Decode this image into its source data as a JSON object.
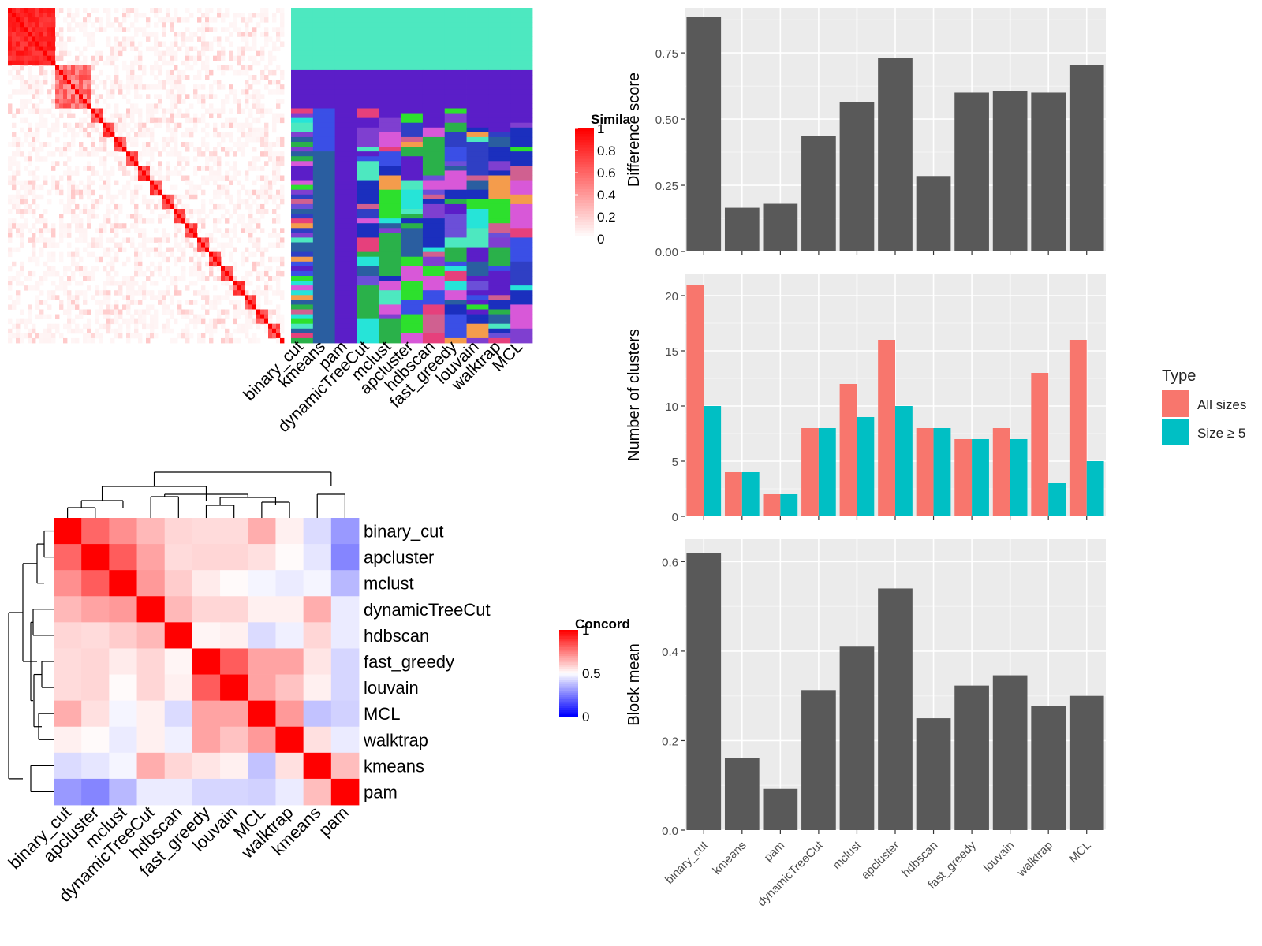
{
  "methods": [
    "binary_cut",
    "kmeans",
    "pam",
    "dynamicTreeCut",
    "mclust",
    "apcluster",
    "hdbscan",
    "fast_greedy",
    "louvain",
    "walktrap",
    "MCL"
  ],
  "top_left": {
    "legend_title": "Simila",
    "legend_ticks": [
      "1",
      "0.8",
      "0.6",
      "0.4",
      "0.2",
      "0"
    ],
    "column_labels": [
      "binary_cut",
      "kmeans",
      "pam",
      "dynamicTreeCut",
      "mclust",
      "apcluster",
      "hdbscan",
      "fast_greedy",
      "louvain",
      "walktrap",
      "MCL"
    ]
  },
  "bottom_left": {
    "legend_title": "Concord",
    "legend_ticks": [
      "1",
      "0.5",
      "0"
    ]
  },
  "colors": {
    "panel_bg": "#ebebeb",
    "bar_dark": "#595959",
    "all_sizes": "#f8766d",
    "size_ge5": "#00bfc4",
    "heat_high": "#ff0000",
    "heat_low": "#0000ff"
  },
  "chart_data": [
    {
      "type": "bar",
      "categories": [
        "binary_cut",
        "kmeans",
        "pam",
        "dynamicTreeCut",
        "mclust",
        "apcluster",
        "hdbscan",
        "fast_greedy",
        "louvain",
        "walktrap",
        "MCL"
      ],
      "values": [
        0.885,
        0.165,
        0.18,
        0.435,
        0.565,
        0.73,
        0.285,
        0.6,
        0.605,
        0.6,
        0.705
      ],
      "ylabel": "Difference score",
      "ylim": [
        0,
        0.92
      ],
      "yticks": [
        "0.00",
        "0.25",
        "0.50",
        "0.75"
      ],
      "ytick_values": [
        0,
        0.25,
        0.5,
        0.75
      ]
    },
    {
      "type": "bar",
      "categories": [
        "binary_cut",
        "kmeans",
        "pam",
        "dynamicTreeCut",
        "mclust",
        "apcluster",
        "hdbscan",
        "fast_greedy",
        "louvain",
        "walktrap",
        "MCL"
      ],
      "series": [
        {
          "name": "All sizes",
          "values": [
            21,
            4,
            2,
            8,
            12,
            16,
            8,
            7,
            8,
            13,
            16
          ]
        },
        {
          "name": "Size ≥ 5",
          "values": [
            10,
            4,
            2,
            8,
            9,
            10,
            8,
            7,
            7,
            3,
            5
          ]
        }
      ],
      "ylabel": "Number of clusters",
      "ylim": [
        0,
        22
      ],
      "yticks": [
        "0",
        "5",
        "10",
        "15",
        "20"
      ],
      "ytick_values": [
        0,
        5,
        10,
        15,
        20
      ],
      "legend_title": "Type",
      "legend_position": "right"
    },
    {
      "type": "bar",
      "categories": [
        "binary_cut",
        "kmeans",
        "pam",
        "dynamicTreeCut",
        "mclust",
        "apcluster",
        "hdbscan",
        "fast_greedy",
        "louvain",
        "walktrap",
        "MCL"
      ],
      "values": [
        0.62,
        0.162,
        0.092,
        0.313,
        0.41,
        0.54,
        0.25,
        0.323,
        0.346,
        0.277,
        0.3
      ],
      "ylabel": "Block mean",
      "ylim": [
        0,
        0.65
      ],
      "yticks": [
        "0.0",
        "0.2",
        "0.4",
        "0.6"
      ],
      "ytick_values": [
        0,
        0.2,
        0.4,
        0.6
      ]
    },
    {
      "type": "heatmap",
      "labels": [
        "binary_cut",
        "apcluster",
        "mclust",
        "dynamicTreeCut",
        "hdbscan",
        "fast_greedy",
        "louvain",
        "MCL",
        "walktrap",
        "kmeans",
        "pam"
      ],
      "matrix": [
        [
          1.0,
          0.8,
          0.72,
          0.64,
          0.58,
          0.57,
          0.57,
          0.66,
          0.53,
          0.43,
          0.3
        ],
        [
          0.8,
          1.0,
          0.82,
          0.68,
          0.57,
          0.58,
          0.58,
          0.56,
          0.51,
          0.45,
          0.26
        ],
        [
          0.72,
          0.82,
          1.0,
          0.7,
          0.6,
          0.54,
          0.51,
          0.48,
          0.46,
          0.48,
          0.36
        ],
        [
          0.64,
          0.68,
          0.7,
          1.0,
          0.64,
          0.58,
          0.58,
          0.53,
          0.53,
          0.66,
          0.46
        ],
        [
          0.58,
          0.57,
          0.6,
          0.64,
          1.0,
          0.52,
          0.53,
          0.43,
          0.47,
          0.58,
          0.46
        ],
        [
          0.57,
          0.58,
          0.54,
          0.58,
          0.52,
          1.0,
          0.82,
          0.68,
          0.68,
          0.55,
          0.42
        ],
        [
          0.57,
          0.58,
          0.51,
          0.58,
          0.53,
          0.82,
          1.0,
          0.68,
          0.62,
          0.53,
          0.42
        ],
        [
          0.66,
          0.56,
          0.48,
          0.53,
          0.43,
          0.68,
          0.68,
          1.0,
          0.7,
          0.38,
          0.41
        ],
        [
          0.53,
          0.51,
          0.46,
          0.53,
          0.47,
          0.68,
          0.62,
          0.7,
          1.0,
          0.56,
          0.46
        ],
        [
          0.43,
          0.45,
          0.48,
          0.66,
          0.58,
          0.55,
          0.53,
          0.38,
          0.56,
          1.0,
          0.63
        ],
        [
          0.3,
          0.26,
          0.36,
          0.46,
          0.46,
          0.42,
          0.42,
          0.41,
          0.46,
          0.63,
          1.0
        ]
      ]
    }
  ]
}
